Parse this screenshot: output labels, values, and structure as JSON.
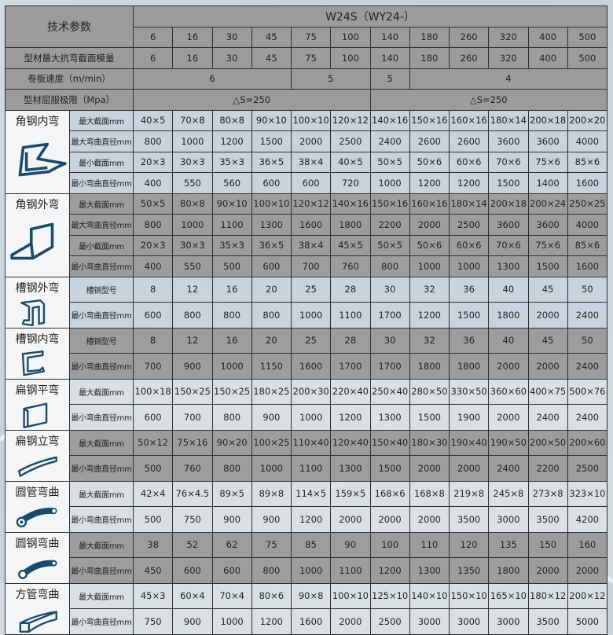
{
  "header": {
    "param_label": "技术参数",
    "model": "W24S（WY24-）",
    "models": [
      "6",
      "16",
      "30",
      "45",
      "75",
      "100",
      "140",
      "180",
      "260",
      "320",
      "400",
      "500"
    ],
    "modulus_label": "型材最大抗弯截面模量",
    "modulus": [
      "6",
      "16",
      "30",
      "45",
      "75",
      "100",
      "140",
      "180",
      "260",
      "320",
      "400",
      "500"
    ],
    "speed_label": "卷板速度（m/min）",
    "speed": [
      {
        "value": "6",
        "span": 4
      },
      {
        "value": "5",
        "span": 2
      },
      {
        "value": "5",
        "span": 1
      },
      {
        "value": "4",
        "span": 5
      }
    ],
    "yield_label": "型材屈服极限（Mpa）",
    "yield": [
      {
        "value": "△S=250",
        "span": 6
      },
      {
        "value": "△S=250",
        "span": 6
      }
    ]
  },
  "icon_color": "#1b4a6b",
  "sections": [
    {
      "name": "角钢内弯",
      "icon": "angle-inner-bend-icon",
      "tone": "light",
      "rows": [
        {
          "label": "最大截面mm",
          "values": [
            "40×5",
            "70×8",
            "80×8",
            "90×10",
            "100×10",
            "120×12",
            "140×16",
            "150×16",
            "160×16",
            "180×14",
            "200×18",
            "200×20"
          ]
        },
        {
          "label": "最大弯曲直径mm",
          "values": [
            "800",
            "1000",
            "1200",
            "1500",
            "2000",
            "2500",
            "2400",
            "2600",
            "2600",
            "3600",
            "3600",
            "4000"
          ]
        },
        {
          "label": "最小截面mm",
          "values": [
            "20×3",
            "30×3",
            "35×3",
            "36×5",
            "38×4",
            "40×5",
            "50×5",
            "50×6",
            "60×6",
            "70×6",
            "75×6",
            "85×6"
          ]
        },
        {
          "label": "最小弯曲直径mm",
          "values": [
            "400",
            "550",
            "560",
            "600",
            "600",
            "720",
            "1000",
            "1200",
            "1200",
            "1500",
            "1400",
            "1600"
          ]
        }
      ]
    },
    {
      "name": "角钢外弯",
      "icon": "angle-outer-bend-icon",
      "tone": "dark",
      "rows": [
        {
          "label": "最大截面mm",
          "values": [
            "50×5",
            "80×8",
            "90×10",
            "100×10",
            "120×12",
            "140×16",
            "150×16",
            "160×16",
            "180×14",
            "200×18",
            "200×24",
            "250×25"
          ]
        },
        {
          "label": "最大弯曲直径mm",
          "values": [
            "800",
            "1000",
            "1100",
            "1300",
            "1600",
            "1800",
            "2200",
            "2000",
            "2500",
            "3600",
            "3600",
            "4000"
          ]
        },
        {
          "label": "最小截面mm",
          "values": [
            "20×3",
            "30×3",
            "35×3",
            "36×5",
            "38×4",
            "45×5",
            "50×5",
            "50×6",
            "60×6",
            "70×6",
            "75×6",
            "85×6"
          ]
        },
        {
          "label": "最小弯曲直径mm",
          "values": [
            "400",
            "550",
            "500",
            "600",
            "700",
            "760",
            "800",
            "1000",
            "1000",
            "1300",
            "1500",
            "1600"
          ]
        }
      ]
    },
    {
      "name": "槽钢外弯",
      "icon": "channel-outer-bend-icon",
      "tone": "light",
      "rows": [
        {
          "label": "槽钢型号",
          "values": [
            "8",
            "12",
            "16",
            "20",
            "25",
            "28",
            "30",
            "32",
            "36",
            "40",
            "45",
            "50"
          ]
        },
        {
          "label": "最小弯曲直径mm",
          "values": [
            "600",
            "800",
            "800",
            "800",
            "1000",
            "1100",
            "1700",
            "1200",
            "1500",
            "1800",
            "2000",
            "2400"
          ]
        }
      ]
    },
    {
      "name": "槽钢内弯",
      "icon": "channel-inner-bend-icon",
      "tone": "dark",
      "rows": [
        {
          "label": "槽钢型号",
          "values": [
            "8",
            "12",
            "16",
            "20",
            "25",
            "28",
            "30",
            "32",
            "36",
            "40",
            "45",
            "50"
          ]
        },
        {
          "label": "最小弯曲直径mm",
          "values": [
            "700",
            "900",
            "1000",
            "1150",
            "1600",
            "1700",
            "1700",
            "1800",
            "1800",
            "2000",
            "2000",
            "2400"
          ]
        }
      ]
    },
    {
      "name": "扁钢平弯",
      "icon": "flat-bar-flat-bend-icon",
      "tone": "pale",
      "rows": [
        {
          "label": "最大截面mm",
          "values": [
            "100×18",
            "150×25",
            "150×25",
            "180×25",
            "200×30",
            "220×40",
            "250×40",
            "280×50",
            "330×50",
            "360×60",
            "400×75",
            "500×76"
          ]
        },
        {
          "label": "最小弯曲直径mm",
          "values": [
            "600",
            "700",
            "800",
            "900",
            "1000",
            "1200",
            "1300",
            "1500",
            "1900",
            "2000",
            "2400",
            "2400"
          ]
        }
      ]
    },
    {
      "name": "扁钢立弯",
      "icon": "flat-bar-edge-bend-icon",
      "tone": "dark",
      "rows": [
        {
          "label": "最大截面mm",
          "values": [
            "50×12",
            "75×16",
            "90×20",
            "100×25",
            "110×40",
            "120×40",
            "150×40",
            "180×30",
            "190×40",
            "190×50",
            "200×50",
            "200×60"
          ]
        },
        {
          "label": "最小弯曲直径mm",
          "values": [
            "500",
            "760",
            "800",
            "1000",
            "1100",
            "1300",
            "1500",
            "2000",
            "2000",
            "2400",
            "2200",
            "2500"
          ]
        }
      ]
    },
    {
      "name": "圆管弯曲",
      "icon": "round-tube-bend-icon",
      "tone": "pale",
      "rows": [
        {
          "label": "最大截面mm",
          "values": [
            "42×4",
            "76×4.5",
            "89×5",
            "89×8",
            "114×5",
            "159×5",
            "168×6",
            "168×8",
            "219×8",
            "245×8",
            "273×8",
            "323×10"
          ]
        },
        {
          "label": "最小弯曲直径mm",
          "values": [
            "500",
            "750",
            "900",
            "900",
            "1200",
            "2000",
            "2000",
            "2000",
            "3500",
            "3000",
            "3500",
            "4200"
          ]
        }
      ]
    },
    {
      "name": "圆钢弯曲",
      "icon": "round-bar-bend-icon",
      "tone": "dark",
      "rows": [
        {
          "label": "最大截面mm",
          "values": [
            "38",
            "52",
            "62",
            "75",
            "85",
            "90",
            "100",
            "110",
            "120",
            "135",
            "150",
            "160"
          ]
        },
        {
          "label": "最小弯曲直径mm",
          "values": [
            "450",
            "600",
            "600",
            "800",
            "1000",
            "1100",
            "1200",
            "1300",
            "1350",
            "1800",
            "2000",
            "2000"
          ]
        }
      ]
    },
    {
      "name": "方管弯曲",
      "icon": "square-tube-bend-icon",
      "tone": "pale",
      "rows": [
        {
          "label": "最大截面mm",
          "values": [
            "45×3",
            "60×4",
            "70×4",
            "80×6",
            "90×8",
            "100×10",
            "125×10",
            "140×10",
            "150×10",
            "165×10",
            "180×12",
            "200×12"
          ]
        },
        {
          "label": "最小弯曲直径mm",
          "values": [
            "750",
            "900",
            "1000",
            "1200",
            "1600",
            "2000",
            "2500",
            "3000",
            "3000",
            "3000",
            "3500",
            "5000"
          ]
        }
      ]
    }
  ]
}
